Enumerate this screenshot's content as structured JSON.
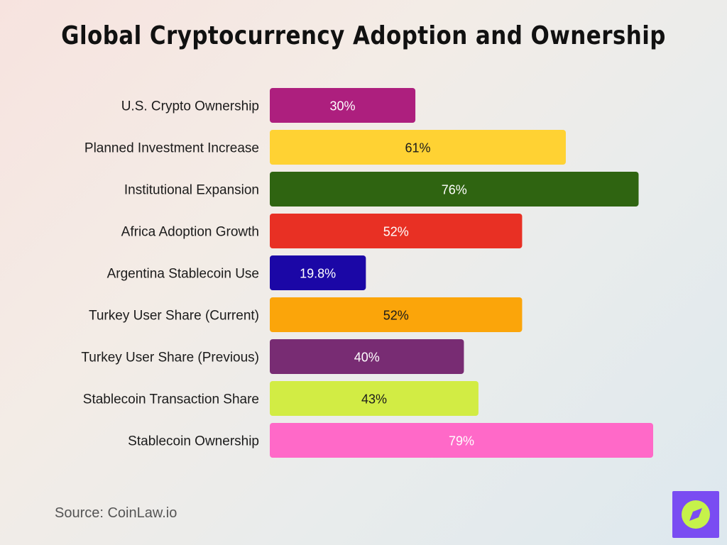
{
  "title": "Global Cryptocurrency Adoption and Ownership",
  "source": "Source: CoinLaw.io",
  "chart_data": {
    "type": "bar",
    "orientation": "horizontal",
    "categories": [
      "U.S. Crypto Ownership",
      "Planned Investment Increase",
      "Institutional Expansion",
      "Africa Adoption Growth",
      "Argentina Stablecoin Use",
      "Turkey User Share (Current)",
      "Turkey User Share (Previous)",
      "Stablecoin Transaction Share",
      "Stablecoin Ownership"
    ],
    "values": [
      30,
      61,
      76,
      52,
      19.8,
      52,
      40,
      43,
      79
    ],
    "value_labels": [
      "30%",
      "61%",
      "76%",
      "52%",
      "19.8%",
      "52%",
      "40%",
      "43%",
      "79%"
    ],
    "colors": [
      "#ad1f7e",
      "#ffd233",
      "#2f6411",
      "#e83024",
      "#1b07a6",
      "#fba50a",
      "#782c73",
      "#d2ec44",
      "#ff69c8"
    ],
    "label_colors": [
      "#ffffff",
      "#1b1b1b",
      "#ffffff",
      "#ffffff",
      "#ffffff",
      "#1b1b1b",
      "#ffffff",
      "#1b1b1b",
      "#ffffff"
    ],
    "xlim": [
      0,
      79
    ],
    "grid": false,
    "legend": "none"
  },
  "logo": {
    "icon": "compass-icon",
    "background": "#7a4cf2",
    "accent": "#c6f24a"
  }
}
